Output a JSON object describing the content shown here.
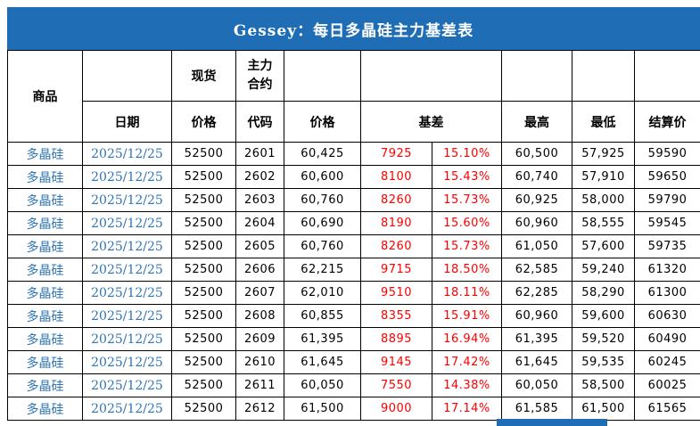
{
  "title": "Gessey：每日多晶硅主力基差表",
  "colors": {
    "title_bg": "#1f6eb5",
    "blue_text": "#2e75b6",
    "red_text": "#ff0000",
    "border": "#000000"
  },
  "header": {
    "commodity": "商品",
    "date": "日期",
    "spot": "现货",
    "main_contract": "主力合约",
    "spot_price": "价格",
    "code": "代码",
    "futures_price": "价格",
    "basis": "基差",
    "high": "最高",
    "low": "最低",
    "settlement": "结算价"
  },
  "rows": [
    {
      "commodity": "多晶硅",
      "date": "2025/12/25",
      "spot_price": "52500",
      "code": "2601",
      "price": "60,425",
      "basis": "7925",
      "basis_pct": "15.10%",
      "high": "60,500",
      "low": "57,925",
      "settle": "59590"
    },
    {
      "commodity": "多晶硅",
      "date": "2025/12/25",
      "spot_price": "52500",
      "code": "2602",
      "price": "60,600",
      "basis": "8100",
      "basis_pct": "15.43%",
      "high": "60,740",
      "low": "57,910",
      "settle": "59650"
    },
    {
      "commodity": "多晶硅",
      "date": "2025/12/25",
      "spot_price": "52500",
      "code": "2603",
      "price": "60,760",
      "basis": "8260",
      "basis_pct": "15.73%",
      "high": "60,925",
      "low": "58,000",
      "settle": "59790"
    },
    {
      "commodity": "多晶硅",
      "date": "2025/12/25",
      "spot_price": "52500",
      "code": "2604",
      "price": "60,690",
      "basis": "8190",
      "basis_pct": "15.60%",
      "high": "60,960",
      "low": "58,555",
      "settle": "59545"
    },
    {
      "commodity": "多晶硅",
      "date": "2025/12/25",
      "spot_price": "52500",
      "code": "2605",
      "price": "60,760",
      "basis": "8260",
      "basis_pct": "15.73%",
      "high": "61,050",
      "low": "57,600",
      "settle": "59735"
    },
    {
      "commodity": "多晶硅",
      "date": "2025/12/25",
      "spot_price": "52500",
      "code": "2606",
      "price": "62,215",
      "basis": "9715",
      "basis_pct": "18.50%",
      "high": "62,585",
      "low": "59,240",
      "settle": "61320"
    },
    {
      "commodity": "多晶硅",
      "date": "2025/12/25",
      "spot_price": "52500",
      "code": "2607",
      "price": "62,010",
      "basis": "9510",
      "basis_pct": "18.11%",
      "high": "62,285",
      "low": "58,290",
      "settle": "61300"
    },
    {
      "commodity": "多晶硅",
      "date": "2025/12/25",
      "spot_price": "52500",
      "code": "2608",
      "price": "60,855",
      "basis": "8355",
      "basis_pct": "15.91%",
      "high": "60,960",
      "low": "59,600",
      "settle": "60630"
    },
    {
      "commodity": "多晶硅",
      "date": "2025/12/25",
      "spot_price": "52500",
      "code": "2609",
      "price": "61,395",
      "basis": "8895",
      "basis_pct": "16.94%",
      "high": "61,395",
      "low": "59,520",
      "settle": "60490"
    },
    {
      "commodity": "多晶硅",
      "date": "2025/12/25",
      "spot_price": "52500",
      "code": "2610",
      "price": "61,645",
      "basis": "9145",
      "basis_pct": "17.42%",
      "high": "61,645",
      "low": "59,535",
      "settle": "60245"
    },
    {
      "commodity": "多晶硅",
      "date": "2025/12/25",
      "spot_price": "52500",
      "code": "2611",
      "price": "60,050",
      "basis": "7550",
      "basis_pct": "14.38%",
      "high": "60,050",
      "low": "58,500",
      "settle": "60025"
    },
    {
      "commodity": "多晶硅",
      "date": "2025/12/25",
      "spot_price": "52500",
      "code": "2612",
      "price": "61,500",
      "basis": "9000",
      "basis_pct": "17.14%",
      "high": "61,585",
      "low": "61,500",
      "settle": "61565"
    }
  ]
}
